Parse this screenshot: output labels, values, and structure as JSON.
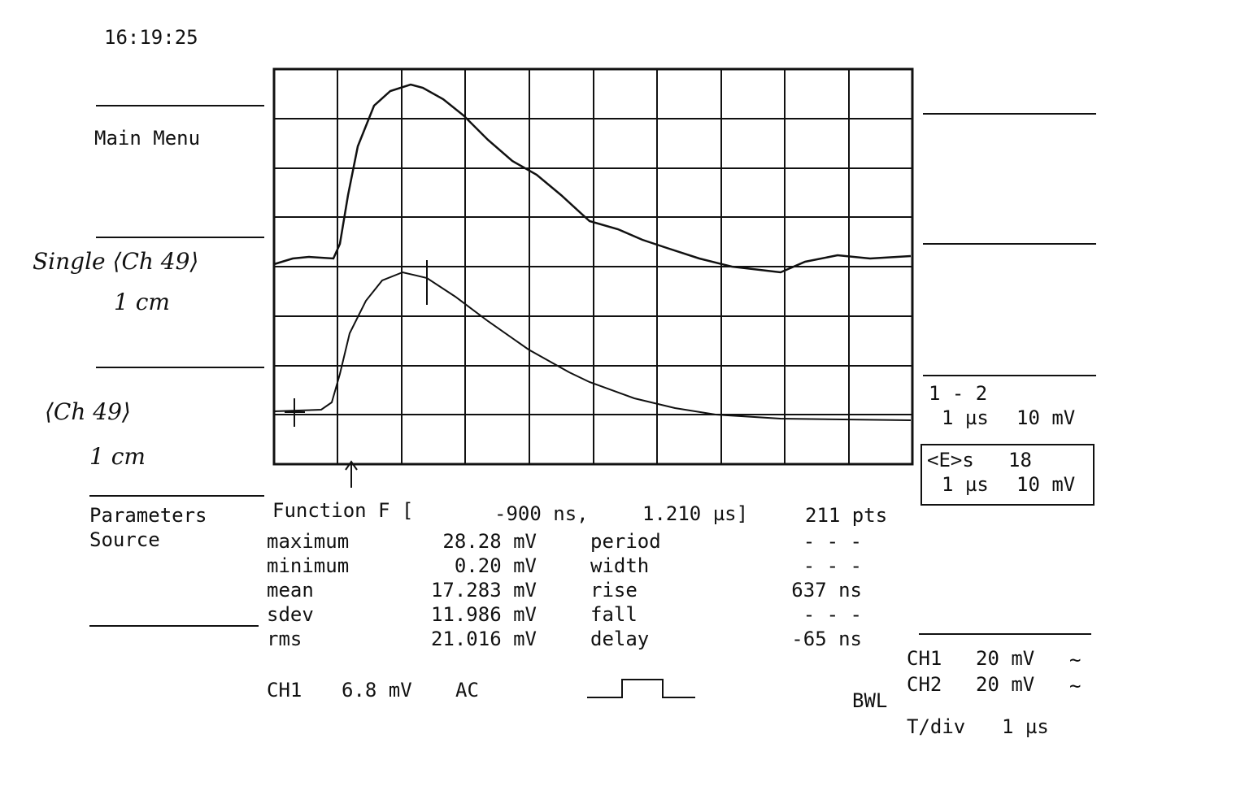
{
  "header": {
    "time": "16:19:25",
    "menu": "Main Menu"
  },
  "annotations": {
    "note1_line1": "Single ⟨Ch 49⟩",
    "note1_line2": "1 cm",
    "note2_line1": "⟨Ch 49⟩",
    "note2_line2": "1 cm"
  },
  "trace_info": {
    "label": "1 - 2",
    "timebase": "1 µs",
    "scale": "10 mV",
    "box_label": "<E>s",
    "box_count": "18",
    "box_timebase": "1 µs",
    "box_scale": "10 mV"
  },
  "parameters": {
    "title": "Parameters",
    "source": "Source",
    "function": "Function F [",
    "start": "-900 ns,",
    "end": "1.210 µs]",
    "points": "211 pts",
    "rows": [
      [
        "maximum",
        "28.28 mV",
        "period",
        "- - -"
      ],
      [
        "minimum",
        "0.20 mV",
        "width",
        "- - -"
      ],
      [
        "mean",
        "17.283 mV",
        "rise",
        "637 ns"
      ],
      [
        "sdev",
        "11.986 mV",
        "fall",
        "- - -"
      ],
      [
        "rms",
        "21.016 mV",
        "delay",
        "-65 ns"
      ]
    ]
  },
  "footer": {
    "trigger_channel": "CH1",
    "trigger_level": "6.8 mV",
    "coupling": "AC",
    "bwl": "BWL",
    "ch1": "CH1",
    "ch1_scale": "20 mV",
    "ch1_coupling": "~",
    "ch2": "CH2",
    "ch2_scale": "20 mV",
    "ch2_coupling": "~",
    "tdiv": "T/div",
    "tdiv_value": "1 µs"
  }
}
